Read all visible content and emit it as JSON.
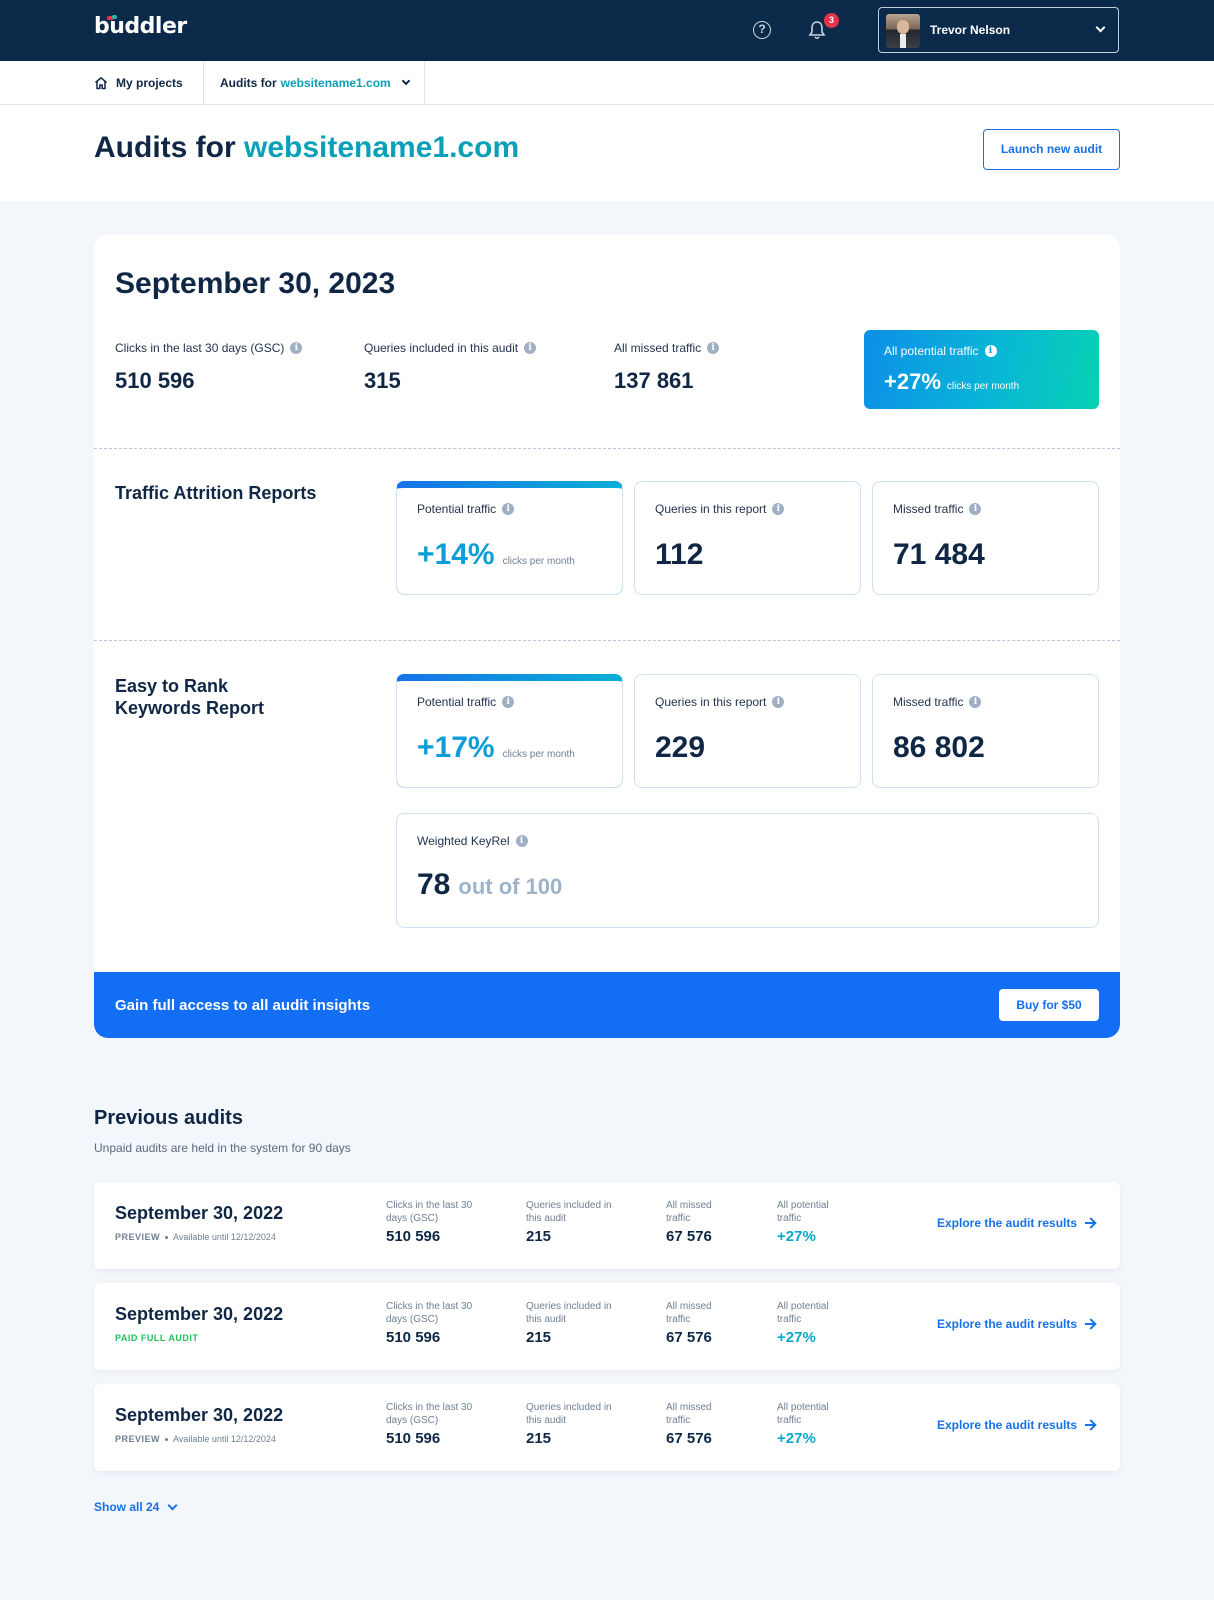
{
  "app": {
    "logo": "buddler"
  },
  "topbar": {
    "notifications_count": "3",
    "help_symbol": "?",
    "user_name": "Trevor Nelson"
  },
  "breadcrumb": {
    "home": "My projects",
    "audits_prefix": "Audits for",
    "site": "websitename1.com"
  },
  "header": {
    "title_prefix": "Audits for",
    "site": "websitename1.com",
    "launch_button": "Launch new audit"
  },
  "audit": {
    "date": "September 30, 2023",
    "stats": [
      {
        "label": "Clicks in the last 30 days (GSC)",
        "value": "510 596"
      },
      {
        "label": "Queries included in this audit",
        "value": "315"
      },
      {
        "label": "All missed traffic",
        "value": "137 861"
      }
    ],
    "potential": {
      "label": "All potential traffic",
      "value": "+27%",
      "unit": "clicks per month"
    }
  },
  "traffic_attrition": {
    "title": "Traffic Attrition Reports",
    "potential": {
      "label": "Potential traffic",
      "value": "+14%",
      "unit": "clicks per month"
    },
    "queries": {
      "label": "Queries in this report",
      "value": "112"
    },
    "missed": {
      "label": "Missed traffic",
      "value": "71 484"
    }
  },
  "easy_rank": {
    "title_line1": "Easy to Rank",
    "title_line2": "Keywords Report",
    "potential": {
      "label": "Potential traffic",
      "value": "+17%",
      "unit": "clicks per month"
    },
    "queries": {
      "label": "Queries in this report",
      "value": "229"
    },
    "missed": {
      "label": "Missed traffic",
      "value": "86 802"
    },
    "keyrel": {
      "label": "Weighted KeyRel",
      "value": "78",
      "suffix": "out of 100"
    }
  },
  "buybar": {
    "text": "Gain full access to all audit insights",
    "button": "Buy for $50"
  },
  "previous": {
    "title": "Previous audits",
    "subtitle": "Unpaid audits are held in the system for 90 days",
    "col_labels": {
      "clicks": "Clicks in the last 30 days (GSC)",
      "queries": "Queries included in this audit",
      "missed": "All missed traffic",
      "potential": "All potential traffic"
    },
    "rows": [
      {
        "date": "September 30, 2022",
        "kind": "PREVIEW",
        "availability": "Available until 12/12/2024",
        "clicks": "510 596",
        "queries": "215",
        "missed": "67 576",
        "potential": "+27%",
        "action": "Explore the audit results"
      },
      {
        "date": "September 30, 2022",
        "kind": "PAID FULL AUDIT",
        "availability": "",
        "clicks": "510 596",
        "queries": "215",
        "missed": "67 576",
        "potential": "+27%",
        "action": "Explore the audit results"
      },
      {
        "date": "September 30, 2022",
        "kind": "PREVIEW",
        "availability": "Available until 12/12/2024",
        "clicks": "510 596",
        "queries": "215",
        "missed": "67 576",
        "potential": "+27%",
        "action": "Explore the audit results"
      }
    ],
    "show_all": "Show all 24"
  },
  "colors": {
    "navy": "#0b2a4a",
    "accent_blue": "#116ef5",
    "teal": "#0aa1b8",
    "paid_green": "#1fbf5a",
    "badge_red": "#e8324a"
  },
  "icons": [
    "help-icon",
    "bell-icon",
    "chevron-down-icon",
    "home-icon",
    "info-icon",
    "arrow-right-icon"
  ]
}
